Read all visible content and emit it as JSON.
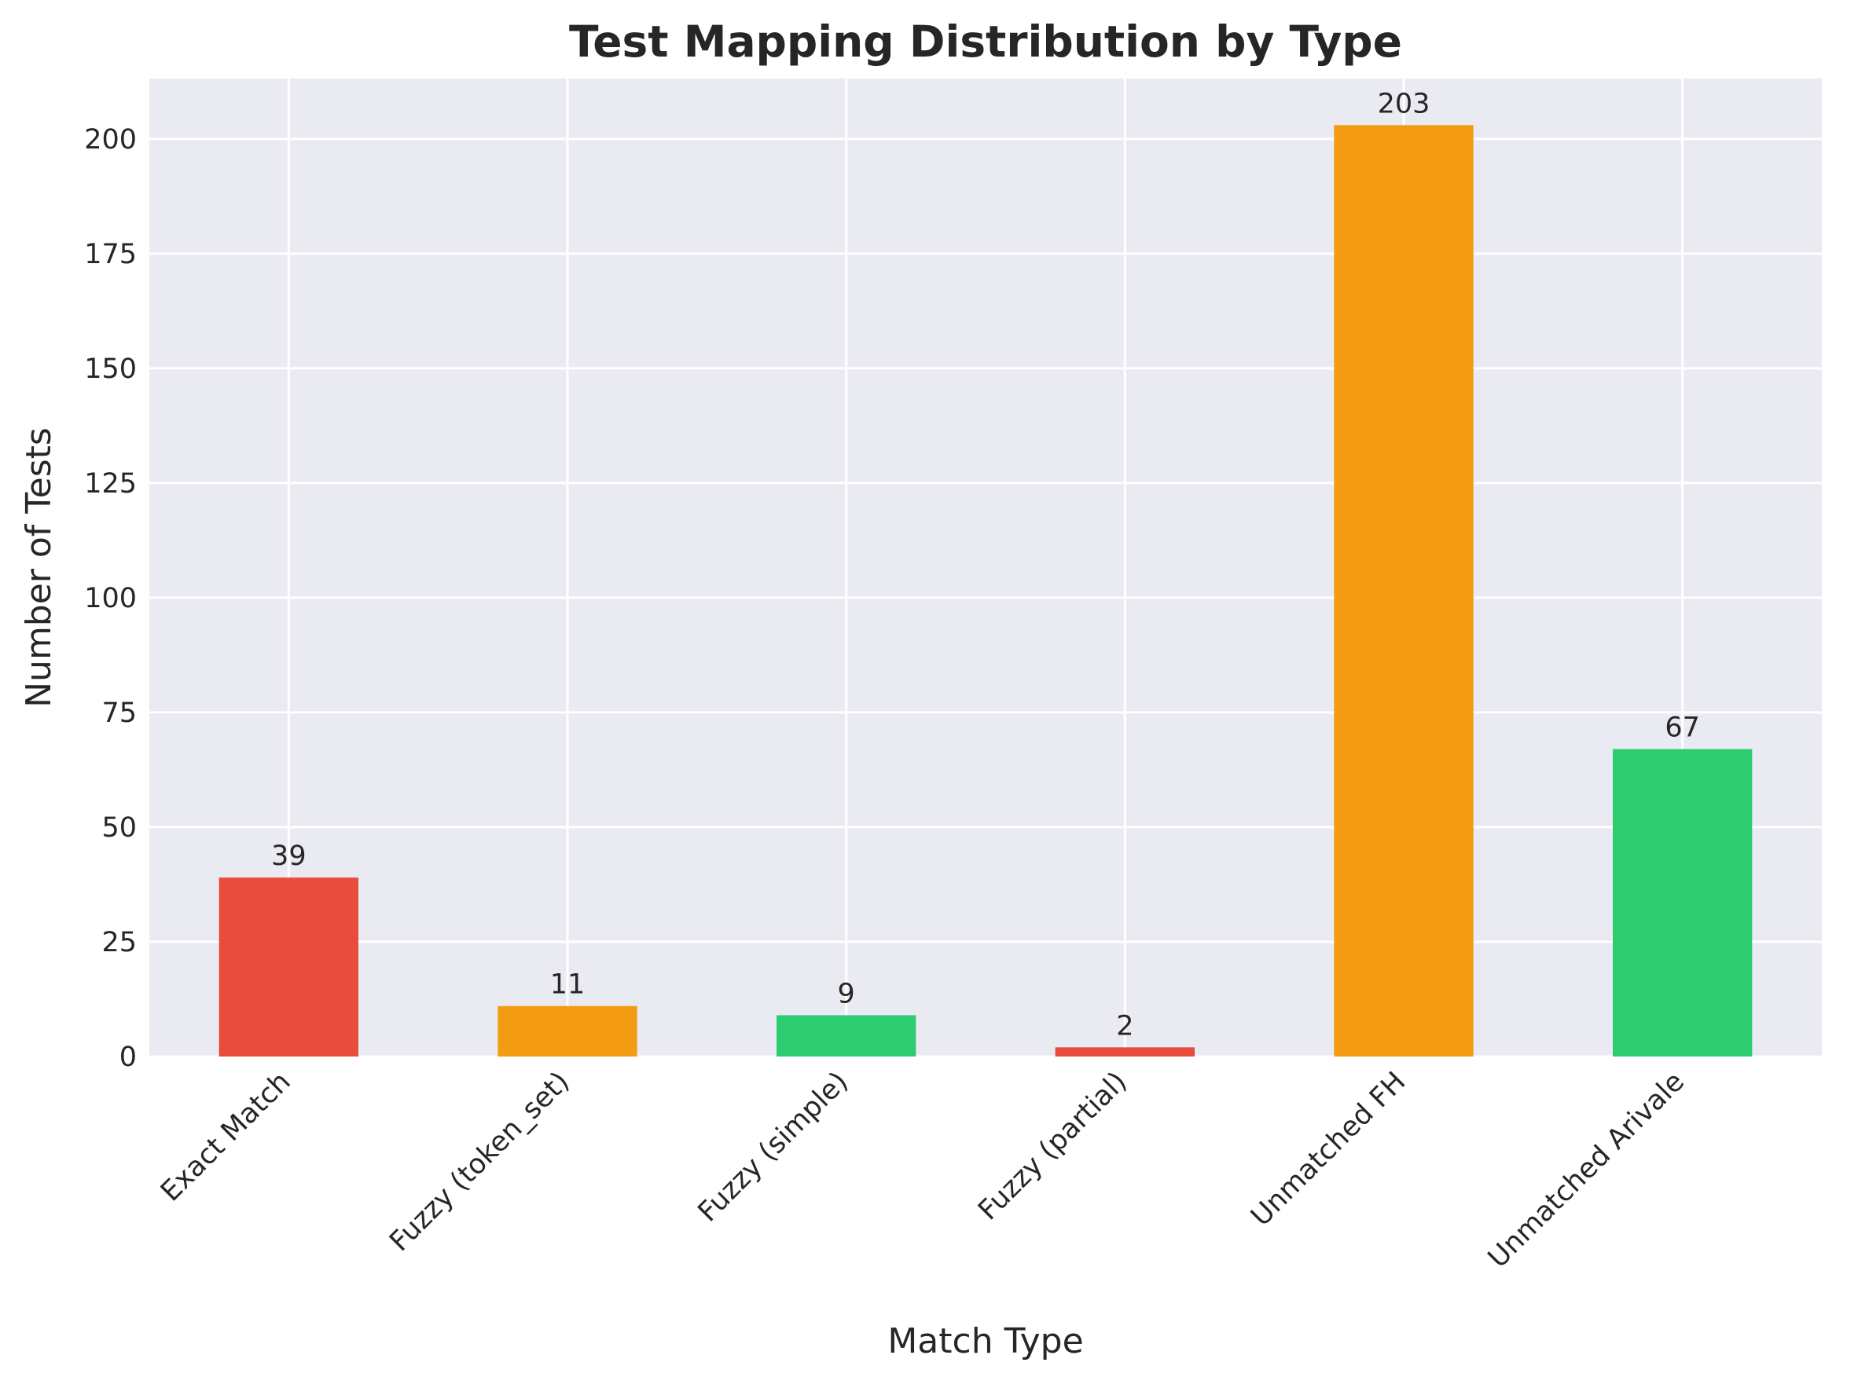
{
  "chart_data": {
    "type": "bar",
    "title": "Test Mapping Distribution by Type",
    "xlabel": "Match Type",
    "ylabel": "Number of Tests",
    "categories": [
      "Exact Match",
      "Fuzzy (token_set)",
      "Fuzzy (simple)",
      "Fuzzy (partial)",
      "Unmatched FH",
      "Unmatched Arivale"
    ],
    "values": [
      39,
      11,
      9,
      2,
      203,
      67
    ],
    "bar_labels": [
      "39",
      "11",
      "9",
      "2",
      "203",
      "67"
    ],
    "bar_colors": [
      "#e74c3c",
      "#f39c12",
      "#2ecc71",
      "#e74c3c",
      "#f39c12",
      "#2ecc71"
    ],
    "yticks": [
      0,
      25,
      50,
      75,
      100,
      125,
      150,
      175,
      200
    ],
    "ylim": [
      0,
      213.15
    ],
    "grid": true,
    "background_color": "#eaeaf2",
    "grid_color": "#ffffff"
  }
}
